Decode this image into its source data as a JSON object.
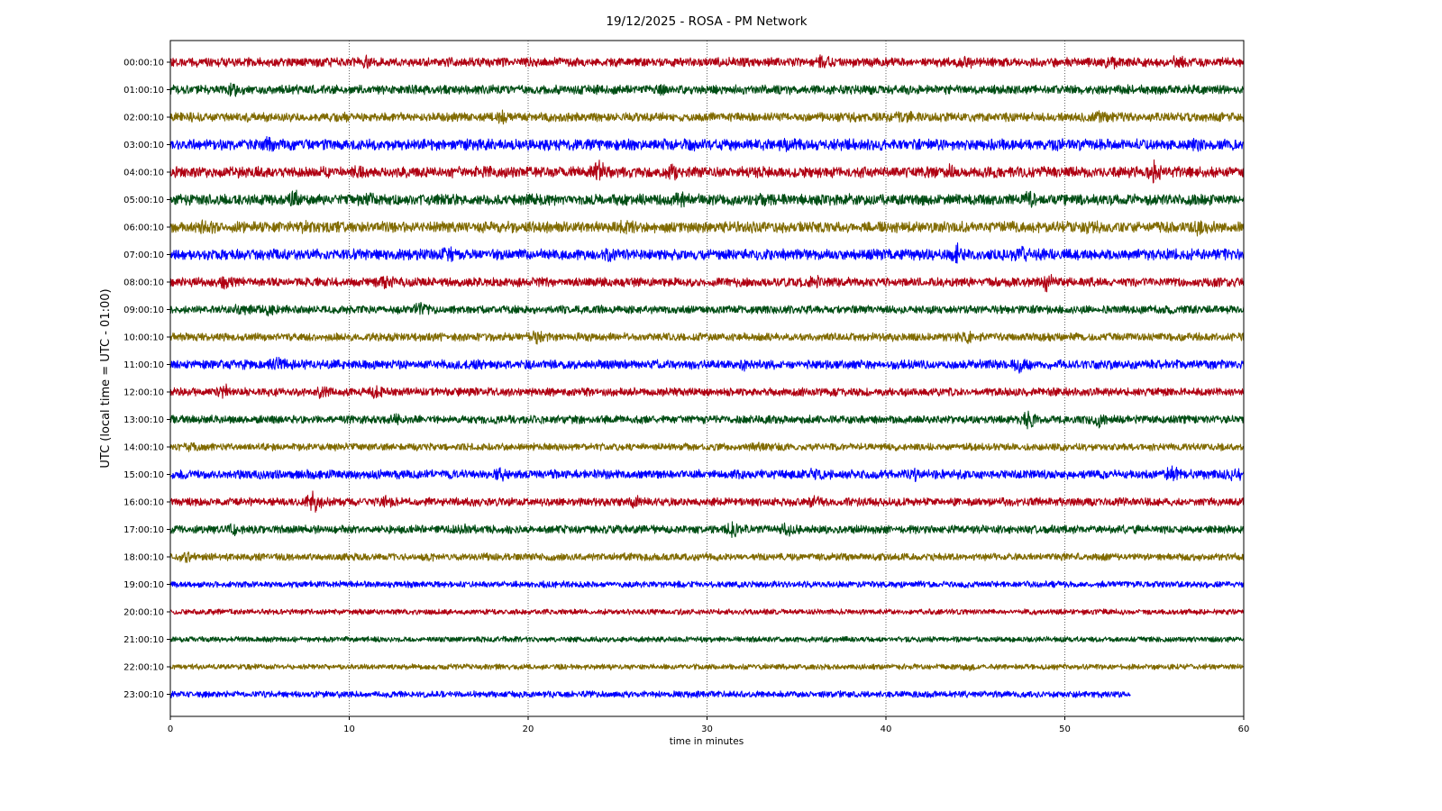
{
  "chart_data": {
    "type": "line",
    "title": "19/12/2025 - ROSA - PM Network",
    "xlabel": "time in minutes",
    "ylabel": "UTC (local time = UTC - 01:00)",
    "xlim": [
      0,
      60
    ],
    "xticks": [
      0,
      10,
      20,
      30,
      40,
      50,
      60
    ],
    "grid": "vertical dotted lines at x ticks",
    "colors": [
      "#b00012",
      "#004d14",
      "#806a00",
      "#0000ff"
    ],
    "series": [
      {
        "label": "00:00:10",
        "x_end": 60,
        "amplitude": 0.5,
        "events": [
          {
            "t": 11,
            "a": 0.9
          },
          {
            "t": 36.5,
            "a": 0.9
          },
          {
            "t": 44.5,
            "a": 0.8
          },
          {
            "t": 52.5,
            "a": 0.9
          },
          {
            "t": 56.2,
            "a": 0.9
          }
        ]
      },
      {
        "label": "01:00:10",
        "x_end": 60,
        "amplitude": 0.5,
        "events": [
          {
            "t": 3.5,
            "a": 0.8
          },
          {
            "t": 27.5,
            "a": 0.8
          }
        ]
      },
      {
        "label": "02:00:10",
        "x_end": 60,
        "amplitude": 0.5,
        "events": [
          {
            "t": 18.5,
            "a": 0.8
          },
          {
            "t": 41,
            "a": 0.9
          },
          {
            "t": 52,
            "a": 0.8
          }
        ]
      },
      {
        "label": "03:00:10",
        "x_end": 60,
        "amplitude": 0.6,
        "events": [
          {
            "t": 5.5,
            "a": 0.9
          },
          {
            "t": 17.5,
            "a": 0.8
          },
          {
            "t": 29,
            "a": 0.8
          },
          {
            "t": 34.5,
            "a": 0.8
          },
          {
            "t": 49.5,
            "a": 0.8
          },
          {
            "t": 57.5,
            "a": 0.8
          }
        ]
      },
      {
        "label": "04:00:10",
        "x_end": 60,
        "amplitude": 0.6,
        "events": [
          {
            "t": 10.5,
            "a": 0.9
          },
          {
            "t": 24,
            "a": 1.3
          },
          {
            "t": 28,
            "a": 0.9
          },
          {
            "t": 43.5,
            "a": 0.9
          },
          {
            "t": 55,
            "a": 1.3
          }
        ]
      },
      {
        "label": "05:00:10",
        "x_end": 60,
        "amplitude": 0.6,
        "events": [
          {
            "t": 7,
            "a": 1.0
          },
          {
            "t": 11,
            "a": 1.0
          },
          {
            "t": 28.5,
            "a": 0.9
          },
          {
            "t": 33,
            "a": 0.9
          },
          {
            "t": 48,
            "a": 0.9
          }
        ]
      },
      {
        "label": "06:00:10",
        "x_end": 60,
        "amplitude": 0.6,
        "events": [
          {
            "t": 2,
            "a": 0.9
          },
          {
            "t": 7.5,
            "a": 0.8
          },
          {
            "t": 25.5,
            "a": 0.9
          },
          {
            "t": 51.5,
            "a": 0.8
          },
          {
            "t": 57.5,
            "a": 1.1
          }
        ]
      },
      {
        "label": "07:00:10",
        "x_end": 60,
        "amplitude": 0.6,
        "events": [
          {
            "t": 15.5,
            "a": 0.9
          },
          {
            "t": 24.5,
            "a": 0.9
          },
          {
            "t": 44,
            "a": 1.4
          },
          {
            "t": 47.5,
            "a": 0.9
          }
        ]
      },
      {
        "label": "08:00:10",
        "x_end": 60,
        "amplitude": 0.5,
        "events": [
          {
            "t": 3,
            "a": 0.8
          },
          {
            "t": 12,
            "a": 0.9
          },
          {
            "t": 36,
            "a": 0.8
          },
          {
            "t": 49,
            "a": 1.1
          }
        ]
      },
      {
        "label": "09:00:10",
        "x_end": 60,
        "amplitude": 0.45,
        "events": [
          {
            "t": 4,
            "a": 0.8
          },
          {
            "t": 5.5,
            "a": 0.8
          },
          {
            "t": 14,
            "a": 0.8
          }
        ]
      },
      {
        "label": "10:00:10",
        "x_end": 60,
        "amplitude": 0.45,
        "events": [
          {
            "t": 20.5,
            "a": 0.8
          },
          {
            "t": 44.5,
            "a": 0.9
          }
        ]
      },
      {
        "label": "11:00:10",
        "x_end": 60,
        "amplitude": 0.5,
        "events": [
          {
            "t": 6,
            "a": 0.9
          },
          {
            "t": 32,
            "a": 0.8
          },
          {
            "t": 47.5,
            "a": 0.9
          }
        ]
      },
      {
        "label": "12:00:10",
        "x_end": 60,
        "amplitude": 0.45,
        "events": [
          {
            "t": 3,
            "a": 0.9
          },
          {
            "t": 8.5,
            "a": 0.8
          },
          {
            "t": 11.5,
            "a": 0.8
          }
        ]
      },
      {
        "label": "13:00:10",
        "x_end": 60,
        "amplitude": 0.45,
        "events": [
          {
            "t": 12.5,
            "a": 0.7
          },
          {
            "t": 48,
            "a": 1.0
          },
          {
            "t": 52,
            "a": 0.9
          }
        ]
      },
      {
        "label": "14:00:10",
        "x_end": 60,
        "amplitude": 0.4,
        "events": [
          {
            "t": 1.2,
            "a": 0.7
          },
          {
            "t": 33,
            "a": 0.6
          }
        ]
      },
      {
        "label": "15:00:10",
        "x_end": 60,
        "amplitude": 0.5,
        "events": [
          {
            "t": 18.5,
            "a": 0.8
          },
          {
            "t": 36,
            "a": 0.8
          },
          {
            "t": 41.5,
            "a": 0.8
          },
          {
            "t": 56,
            "a": 0.9
          },
          {
            "t": 59.5,
            "a": 1.0
          }
        ]
      },
      {
        "label": "16:00:10",
        "x_end": 60,
        "amplitude": 0.45,
        "events": [
          {
            "t": 8,
            "a": 1.5
          },
          {
            "t": 12,
            "a": 0.7
          },
          {
            "t": 26,
            "a": 0.7
          },
          {
            "t": 36,
            "a": 0.7
          }
        ]
      },
      {
        "label": "17:00:10",
        "x_end": 60,
        "amplitude": 0.45,
        "events": [
          {
            "t": 3.5,
            "a": 0.7
          },
          {
            "t": 16.5,
            "a": 0.7
          },
          {
            "t": 31.5,
            "a": 1.2
          },
          {
            "t": 34.5,
            "a": 0.8
          }
        ]
      },
      {
        "label": "18:00:10",
        "x_end": 60,
        "amplitude": 0.4,
        "events": [
          {
            "t": 1,
            "a": 0.7
          },
          {
            "t": 14.5,
            "a": 0.6
          }
        ]
      },
      {
        "label": "19:00:10",
        "x_end": 60,
        "amplitude": 0.35,
        "events": []
      },
      {
        "label": "20:00:10",
        "x_end": 60,
        "amplitude": 0.3,
        "events": []
      },
      {
        "label": "21:00:10",
        "x_end": 60,
        "amplitude": 0.3,
        "events": []
      },
      {
        "label": "22:00:10",
        "x_end": 60,
        "amplitude": 0.3,
        "events": [
          {
            "t": 44.5,
            "a": 0.5
          }
        ]
      },
      {
        "label": "23:00:10",
        "x_end": 53.7,
        "amplitude": 0.35,
        "events": [
          {
            "t": 23.5,
            "a": 0.5
          }
        ]
      }
    ]
  }
}
